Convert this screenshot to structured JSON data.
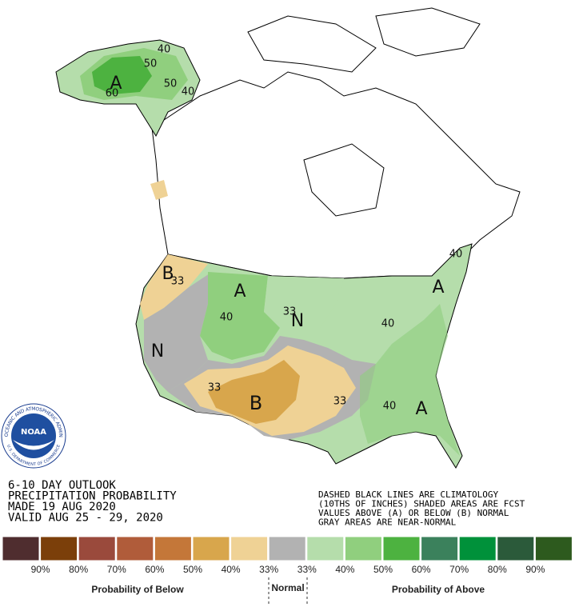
{
  "map_labels": [
    "A",
    "50",
    "50",
    "40",
    "40",
    "60",
    "B",
    "33",
    "A",
    "40",
    "33",
    "N",
    "N",
    "33",
    "B",
    "33",
    "40",
    "A",
    "A",
    "40",
    "40"
  ],
  "logo": {
    "name": "NOAA",
    "top_text": "NATIONAL OCEANIC AND ATMOSPHERIC ADMINISTRATION",
    "bottom_text": "U.S. DEPARTMENT OF COMMERCE"
  },
  "outlook": {
    "lines": [
      "6-10 DAY OUTLOOK",
      "PRECIPITATION PROBABILITY",
      "MADE  19 AUG 2020",
      "VALID  AUG 25 - 29, 2020"
    ]
  },
  "notes": {
    "lines": [
      "DASHED BLACK LINES ARE CLIMATOLOGY",
      "(10THS OF INCHES) SHADED AREAS ARE FCST",
      "VALUES ABOVE (A) OR BELOW (B) NORMAL",
      "GRAY AREAS ARE NEAR-NORMAL"
    ]
  },
  "legend": {
    "colors": [
      "#4f2d2f",
      "#7b3f0a",
      "#9a4a3c",
      "#b05c3a",
      "#c47739",
      "#d8a64c",
      "#efd295",
      "#b2b2b2",
      "#b5ddab",
      "#90cf7e",
      "#4db240",
      "#3b815c",
      "#00913a",
      "#2b5a3a",
      "#2d5a1e"
    ],
    "labels": [
      "90%",
      "80%",
      "70%",
      "60%",
      "50%",
      "40%",
      "33%",
      "33%",
      "40%",
      "50%",
      "60%",
      "70%",
      "80%",
      "90%"
    ],
    "below_title": "Probability of Below",
    "normal_title": "Normal",
    "above_title": "Probability of Above"
  }
}
